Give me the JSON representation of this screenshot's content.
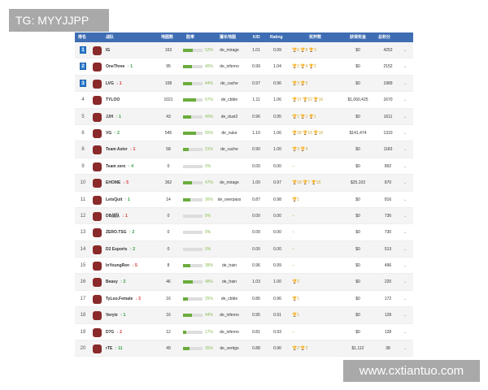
{
  "watermarks": {
    "top": "TG: MYYJJPP",
    "bottom": "www.cxtiantuo.com"
  },
  "headers": [
    "排名",
    "战队",
    "地图数",
    "胜率",
    "擅长地图",
    "K/D",
    "Rating",
    "奖杯数",
    "获得奖金",
    "总积分"
  ],
  "colors": {
    "header": "#3e6db3",
    "bar": "#6aac3c",
    "up": "#2a9a3a",
    "down": "#d23030",
    "gold": "#c9a43a"
  },
  "rows": [
    {
      "rank": "1",
      "team": "IG",
      "change": "",
      "maps": "163",
      "win": 52,
      "map": "de_mirage",
      "kd": "1.01",
      "rating": "0.99",
      "trophies": "🏆6 🏆8 🏆3",
      "prize": "$0",
      "points": "4252"
    },
    {
      "rank": "2",
      "team": "OneThree",
      "change": "↑ 1",
      "maps": "95",
      "win": 45,
      "map": "de_inferno",
      "kd": "0.99",
      "rating": "1.04",
      "trophies": "🏆2 🏆4 🏆2",
      "prize": "$0",
      "points": "2152"
    },
    {
      "rank": "3",
      "team": "LVG",
      "change": "↓ 1",
      "maps": "108",
      "win": 44,
      "map": "de_cache",
      "kd": "0.97",
      "rating": "0.96",
      "trophies": "🏆3 🏆5",
      "prize": "$0",
      "points": "1989"
    },
    {
      "rank": "4",
      "team": "TYLOO",
      "change": "",
      "maps": "1021",
      "win": 67,
      "map": "de_cbble",
      "kd": "1.11",
      "rating": "1.06",
      "trophies": "🏆37 🏆22 🏆16",
      "prize": "$1,060,425",
      "points": "1670"
    },
    {
      "rank": "5",
      "team": "JJH",
      "change": "↑ 1",
      "maps": "43",
      "win": 40,
      "map": "de_dust2",
      "kd": "0.96",
      "rating": "0.95",
      "trophies": "🏆1 🏆1 🏆1",
      "prize": "$0",
      "points": "1611"
    },
    {
      "rank": "6",
      "team": "VG",
      "change": "↑ 2",
      "maps": "545",
      "win": 65,
      "map": "de_nuke",
      "kd": "1.10",
      "rating": "1.06",
      "trophies": "🏆28 🏆15 🏆10",
      "prize": "$141,474",
      "points": "1310"
    },
    {
      "rank": "8",
      "team": "Team Aster",
      "change": "↓ 1",
      "maps": "58",
      "win": 31,
      "map": "de_cache",
      "kd": "0.90",
      "rating": "1.00",
      "trophies": "🏆3 🏆4",
      "prize": "$0",
      "points": "1183"
    },
    {
      "rank": "9",
      "team": "Team zero",
      "change": "↑ 4",
      "maps": "0",
      "win": 0,
      "map": "",
      "kd": "0.00",
      "rating": "0.00",
      "trophies": "--",
      "prize": "$0",
      "points": "892"
    },
    {
      "rank": "10",
      "team": "EHOME",
      "change": "↓ 5",
      "maps": "362",
      "win": 47,
      "map": "de_mirage",
      "kd": "1.00",
      "rating": "0.97",
      "trophies": "🏆18 🏆7 🏆15",
      "prize": "$25,103",
      "points": "870"
    },
    {
      "rank": "11",
      "team": "LetsQuit",
      "change": "↑ 1",
      "maps": "14",
      "win": 36,
      "map": "de_overpass",
      "kd": "0.87",
      "rating": "0.98",
      "trophies": "🏆1",
      "prize": "$0",
      "points": "816"
    },
    {
      "rank": "12",
      "team": "DB战队",
      "change": "↓ 1",
      "maps": "0",
      "win": 0,
      "map": "",
      "kd": "0.00",
      "rating": "0.00",
      "trophies": "--",
      "prize": "$0",
      "points": "736"
    },
    {
      "rank": "13",
      "team": "ZERO.TSG",
      "change": "↑ 2",
      "maps": "0",
      "win": 0,
      "map": "",
      "kd": "0.00",
      "rating": "0.00",
      "trophies": "--",
      "prize": "$0",
      "points": "730"
    },
    {
      "rank": "14",
      "team": "D2 Esports",
      "change": "↑ 2",
      "maps": "0",
      "win": 0,
      "map": "",
      "kd": "0.00",
      "rating": "0.00",
      "trophies": "--",
      "prize": "$0",
      "points": "513"
    },
    {
      "rank": "15",
      "team": "InYoungRen",
      "change": "↓ 5",
      "maps": "8",
      "win": 38,
      "map": "de_train",
      "kd": "0.96",
      "rating": "0.99",
      "trophies": "--",
      "prize": "$0",
      "points": "496"
    },
    {
      "rank": "16",
      "team": "Beasy",
      "change": "↑ 2",
      "maps": "46",
      "win": 48,
      "map": "de_train",
      "kd": "1.03",
      "rating": "1.00",
      "trophies": "🏆2",
      "prize": "$0",
      "points": "220"
    },
    {
      "rank": "17",
      "team": "TyLoo.Female",
      "change": "↓ 3",
      "maps": "16",
      "win": 25,
      "map": "de_cbble",
      "kd": "0.86",
      "rating": "0.96",
      "trophies": "🏆1",
      "prize": "$0",
      "points": "172"
    },
    {
      "rank": "18",
      "team": "Verytz",
      "change": "↑ 1",
      "maps": "16",
      "win": 44,
      "map": "de_inferno",
      "kd": "0.95",
      "rating": "0.91",
      "trophies": "🏆1",
      "prize": "$0",
      "points": "128"
    },
    {
      "rank": "19",
      "team": "D7G",
      "change": "↓ 2",
      "maps": "12",
      "win": 17,
      "map": "de_inferno",
      "kd": "0.81",
      "rating": "0.93",
      "trophies": "--",
      "prize": "$0",
      "points": "128"
    },
    {
      "rank": "20",
      "team": "rTE",
      "change": "↑ 11",
      "maps": "49",
      "win": 35,
      "map": "de_vertigo",
      "kd": "0.88",
      "rating": "0.96",
      "trophies": "🏆2 🏆2",
      "prize": "$1,112",
      "points": "38"
    }
  ]
}
